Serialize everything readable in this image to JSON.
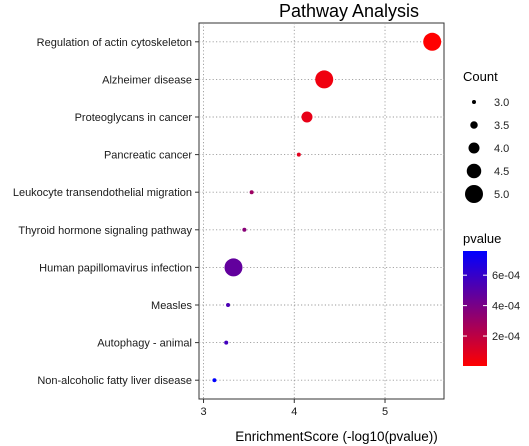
{
  "chart_data": {
    "type": "scatter",
    "title": "Pathway Analysis",
    "xlabel": "EnrichmentScore (-log10(pvalue))",
    "ylabel": "",
    "xlim": [
      2.95,
      5.65
    ],
    "x_ticks": [
      3,
      4,
      5
    ],
    "grid": true,
    "categories": [
      "Regulation of actin cytoskeleton",
      "Alzheimer disease",
      "Proteoglycans in cancer",
      "Pancreatic cancer",
      "Leukocyte transendothelial migration",
      "Thyroid hormone signaling pathway",
      "Human papillomavirus infection",
      "Measles",
      "Autophagy - animal",
      "Non-alcoholic fatty liver disease"
    ],
    "points": [
      {
        "category": "Regulation of actin cytoskeleton",
        "x": 5.52,
        "count": 5,
        "pvalue": 3e-06
      },
      {
        "category": "Alzheimer disease",
        "x": 4.33,
        "count": 5,
        "pvalue": 4.68e-05
      },
      {
        "category": "Proteoglycans in cancer",
        "x": 4.14,
        "count": 4,
        "pvalue": 7.24e-05
      },
      {
        "category": "Pancreatic cancer",
        "x": 4.05,
        "count": 3,
        "pvalue": 8.91e-05
      },
      {
        "category": "Leukocyte transendothelial migration",
        "x": 3.53,
        "count": 3,
        "pvalue": 0.000295
      },
      {
        "category": "Thyroid hormone signaling pathway",
        "x": 3.45,
        "count": 3,
        "pvalue": 0.000355
      },
      {
        "category": "Human papillomavirus infection",
        "x": 3.33,
        "count": 5,
        "pvalue": 0.000468
      },
      {
        "category": "Measles",
        "x": 3.27,
        "count": 3,
        "pvalue": 0.000537
      },
      {
        "category": "Autophagy - animal",
        "x": 3.25,
        "count": 3,
        "pvalue": 0.000562
      },
      {
        "category": "Non-alcoholic fatty liver disease",
        "x": 3.12,
        "count": 3,
        "pvalue": 0.000759
      }
    ],
    "size_legend": {
      "title": "Count",
      "values": [
        3.0,
        3.5,
        4.0,
        4.5,
        5.0
      ],
      "labels": [
        "3.0",
        "3.5",
        "4.0",
        "4.5",
        "5.0"
      ]
    },
    "color_legend": {
      "title": "pvalue",
      "range": [
        3e-06,
        0.000759
      ],
      "ticks": [
        0.0006,
        0.0004,
        0.0002
      ],
      "tick_labels": [
        "6e-04",
        "4e-04",
        "2e-04"
      ],
      "low_color": "#ff0000",
      "high_color": "#0000ff"
    },
    "legend_placement": "right"
  }
}
